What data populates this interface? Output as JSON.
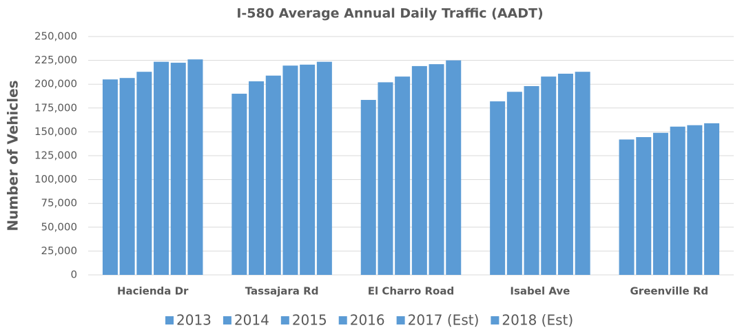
{
  "chart_data": {
    "type": "bar",
    "title": "I-580 Average Annual Daily Traffic (AADT)",
    "y_label": "Number of Vehicles",
    "categories": [
      "Hacienda Dr",
      "Tassajara Rd",
      "El Charro Road",
      "Isabel Ave",
      "Greenville Rd"
    ],
    "series": [
      {
        "name": "2013",
        "color": "#5b9bd5",
        "values": [
          205000,
          190000,
          183500,
          182000,
          142000
        ]
      },
      {
        "name": "2014",
        "color": "#5b9bd5",
        "values": [
          206500,
          203000,
          202000,
          192000,
          144500
        ]
      },
      {
        "name": "2015",
        "color": "#5b9bd5",
        "values": [
          213000,
          209000,
          208000,
          198000,
          149000
        ]
      },
      {
        "name": "2016",
        "color": "#5b9bd5",
        "values": [
          223500,
          219500,
          219000,
          208000,
          155500
        ]
      },
      {
        "name": "2017 (Est)",
        "color": "#5b9bd5",
        "values": [
          222500,
          220500,
          221000,
          211000,
          157000
        ]
      },
      {
        "name": "2018 (Est)",
        "color": "#5b9bd5",
        "values": [
          226000,
          223500,
          225000,
          213000,
          159000
        ]
      }
    ],
    "ylim": [
      0,
      250000
    ],
    "yticks": [
      0,
      {
        "value": 25000,
        "label": "25,000"
      },
      {
        "value": 50000,
        "label": "50,000"
      },
      {
        "value": 75000,
        "label": "75,000"
      },
      {
        "value": 100000,
        "label": "100,000"
      },
      {
        "value": 125000,
        "label": "125,000"
      },
      {
        "value": 150000,
        "label": "150,000"
      },
      {
        "value": 175000,
        "label": "175,000"
      },
      {
        "value": 200000,
        "label": "200,000"
      },
      {
        "value": 225000,
        "label": "225,000"
      },
      {
        "value": 250000,
        "label": "250,000"
      }
    ],
    "grid": true,
    "legend": "bottom"
  }
}
